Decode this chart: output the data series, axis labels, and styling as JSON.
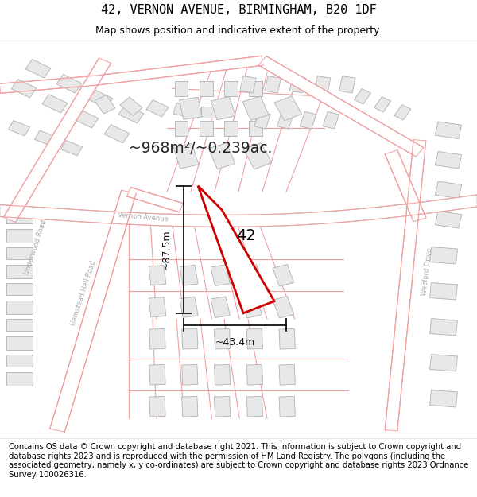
{
  "title": "42, VERNON AVENUE, BIRMINGHAM, B20 1DF",
  "subtitle": "Map shows position and indicative extent of the property.",
  "area_text": "~968m²/~0.239ac.",
  "width_label": "~43.4m",
  "height_label": "~87.5m",
  "property_number": "42",
  "map_bg": "#ffffff",
  "road_stroke": "#f0a0a0",
  "road_stroke_dark": "#c8c8c8",
  "building_fill": "#e8e8e8",
  "building_stroke": "#b0b0b0",
  "property_fill": "#ffffff",
  "property_stroke": "#cc0000",
  "footer_text": "Contains OS data © Crown copyright and database right 2021. This information is subject to Crown copyright and database rights 2023 and is reproduced with the permission of HM Land Registry. The polygons (including the associated geometry, namely x, y co-ordinates) are subject to Crown copyright and database rights 2023 Ordnance Survey 100026316.",
  "title_fontsize": 11,
  "subtitle_fontsize": 9,
  "footer_fontsize": 7.2,
  "road_label_color": "#aaaaaa",
  "dim_line_color": "#111111"
}
